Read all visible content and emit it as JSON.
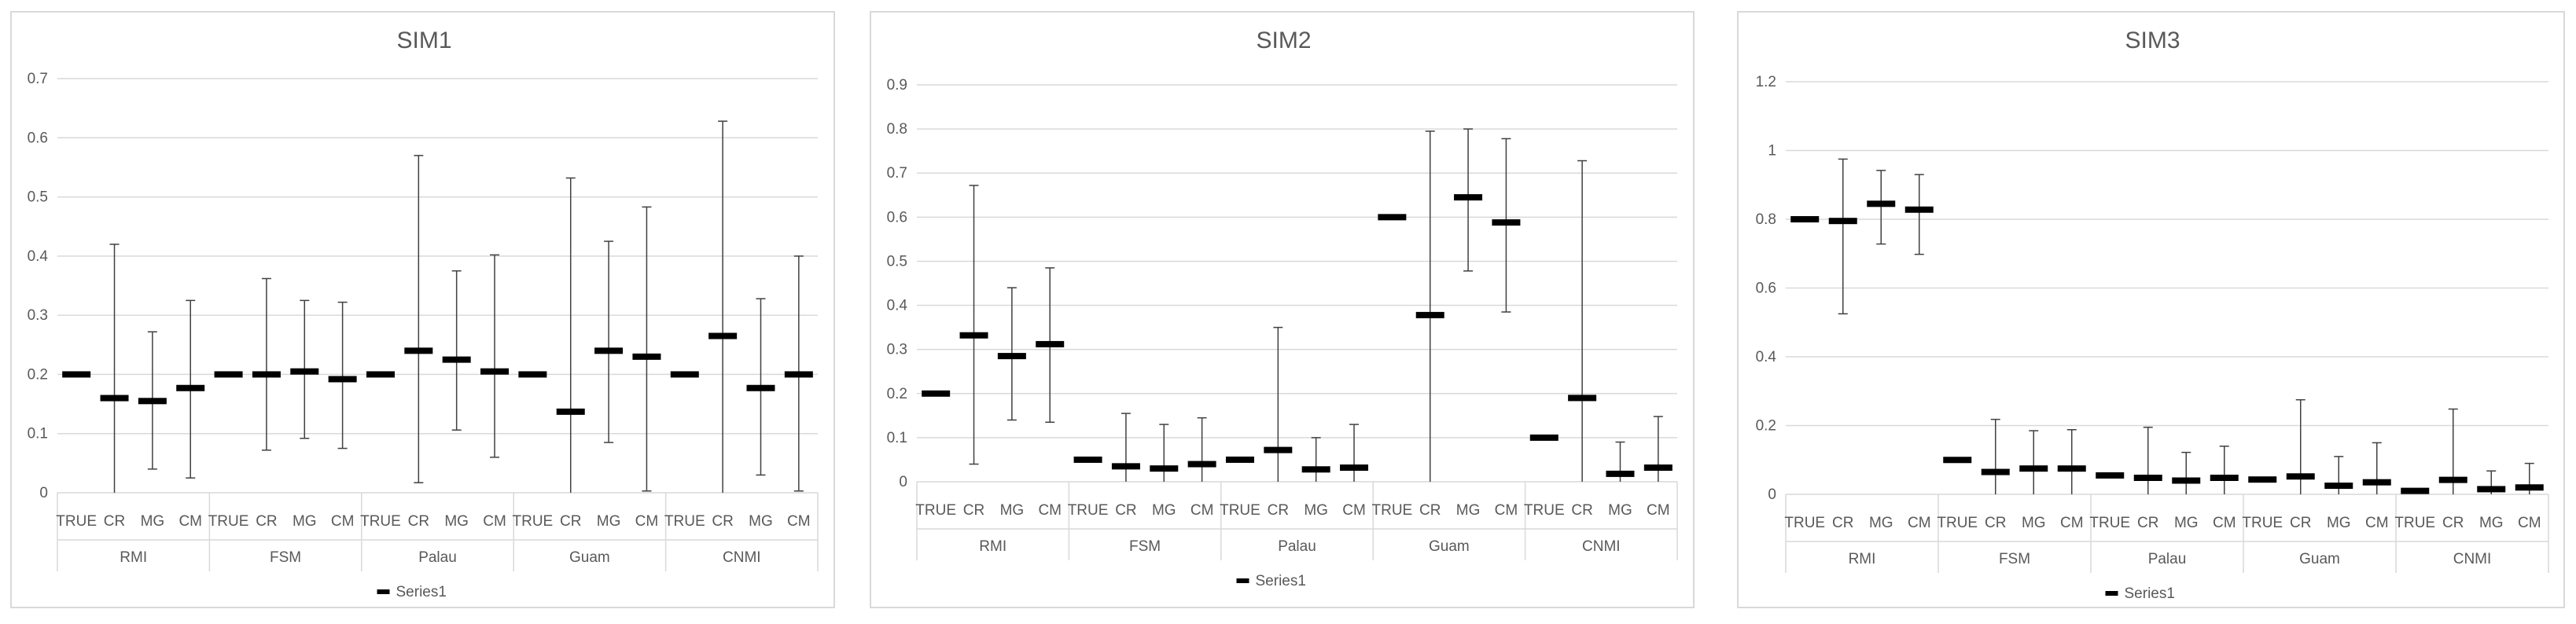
{
  "chart_data": [
    {
      "type": "box",
      "title": "SIM1",
      "ylim": [
        0,
        0.7
      ],
      "yticks": [
        "0",
        "0.1",
        "0.2",
        "0.3",
        "0.4",
        "0.5",
        "0.6",
        "0.7"
      ],
      "grid": true,
      "legend": "bottom",
      "legend_entries": [
        "Series1"
      ],
      "groups": [
        {
          "name": "RMI",
          "items": [
            {
              "label": "TRUE",
              "value": 0.2,
              "low": null,
              "high": null
            },
            {
              "label": "CR",
              "value": 0.16,
              "low": 0.0,
              "high": 0.42
            },
            {
              "label": "MG",
              "value": 0.155,
              "low": 0.04,
              "high": 0.272
            },
            {
              "label": "CM",
              "value": 0.177,
              "low": 0.025,
              "high": 0.325
            }
          ]
        },
        {
          "name": "FSM",
          "items": [
            {
              "label": "TRUE",
              "value": 0.2,
              "low": null,
              "high": null
            },
            {
              "label": "CR",
              "value": 0.2,
              "low": 0.072,
              "high": 0.362
            },
            {
              "label": "MG",
              "value": 0.205,
              "low": 0.092,
              "high": 0.325
            },
            {
              "label": "CM",
              "value": 0.192,
              "low": 0.075,
              "high": 0.322
            }
          ]
        },
        {
          "name": "Palau",
          "items": [
            {
              "label": "TRUE",
              "value": 0.2,
              "low": null,
              "high": null
            },
            {
              "label": "CR",
              "value": 0.24,
              "low": 0.017,
              "high": 0.57
            },
            {
              "label": "MG",
              "value": 0.225,
              "low": 0.106,
              "high": 0.375
            },
            {
              "label": "CM",
              "value": 0.205,
              "low": 0.06,
              "high": 0.402
            }
          ]
        },
        {
          "name": "Guam",
          "items": [
            {
              "label": "TRUE",
              "value": 0.2,
              "low": null,
              "high": null
            },
            {
              "label": "CR",
              "value": 0.137,
              "low": 0.0,
              "high": 0.532
            },
            {
              "label": "MG",
              "value": 0.24,
              "low": 0.085,
              "high": 0.425
            },
            {
              "label": "CM",
              "value": 0.23,
              "low": 0.003,
              "high": 0.483
            }
          ]
        },
        {
          "name": "CNMI",
          "items": [
            {
              "label": "TRUE",
              "value": 0.2,
              "low": null,
              "high": null
            },
            {
              "label": "CR",
              "value": 0.265,
              "low": 0.0,
              "high": 0.628
            },
            {
              "label": "MG",
              "value": 0.177,
              "low": 0.03,
              "high": 0.328
            },
            {
              "label": "CM",
              "value": 0.2,
              "low": 0.003,
              "high": 0.4
            }
          ]
        }
      ]
    },
    {
      "type": "box",
      "title": "SIM2",
      "ylim": [
        0,
        0.9
      ],
      "yticks": [
        "0",
        "0.1",
        "0.2",
        "0.3",
        "0.4",
        "0.5",
        "0.6",
        "0.7",
        "0.8",
        "0.9"
      ],
      "grid": true,
      "legend": "bottom",
      "legend_entries": [
        "Series1"
      ],
      "groups": [
        {
          "name": "RMI",
          "items": [
            {
              "label": "TRUE",
              "value": 0.2,
              "low": null,
              "high": null
            },
            {
              "label": "CR",
              "value": 0.332,
              "low": 0.04,
              "high": 0.672
            },
            {
              "label": "MG",
              "value": 0.285,
              "low": 0.14,
              "high": 0.44
            },
            {
              "label": "CM",
              "value": 0.312,
              "low": 0.135,
              "high": 0.485
            }
          ]
        },
        {
          "name": "FSM",
          "items": [
            {
              "label": "TRUE",
              "value": 0.05,
              "low": null,
              "high": null
            },
            {
              "label": "CR",
              "value": 0.035,
              "low": 0.0,
              "high": 0.155
            },
            {
              "label": "MG",
              "value": 0.03,
              "low": 0.0,
              "high": 0.13
            },
            {
              "label": "CM",
              "value": 0.04,
              "low": 0.0,
              "high": 0.145
            }
          ]
        },
        {
          "name": "Palau",
          "items": [
            {
              "label": "TRUE",
              "value": 0.05,
              "low": null,
              "high": null
            },
            {
              "label": "CR",
              "value": 0.072,
              "low": 0.0,
              "high": 0.35
            },
            {
              "label": "MG",
              "value": 0.028,
              "low": 0.0,
              "high": 0.1
            },
            {
              "label": "CM",
              "value": 0.032,
              "low": 0.0,
              "high": 0.13
            }
          ]
        },
        {
          "name": "Guam",
          "items": [
            {
              "label": "TRUE",
              "value": 0.6,
              "low": null,
              "high": null
            },
            {
              "label": "CR",
              "value": 0.378,
              "low": 0.0,
              "high": 0.795
            },
            {
              "label": "MG",
              "value": 0.645,
              "low": 0.478,
              "high": 0.8
            },
            {
              "label": "CM",
              "value": 0.588,
              "low": 0.385,
              "high": 0.778
            }
          ]
        },
        {
          "name": "CNMI",
          "items": [
            {
              "label": "TRUE",
              "value": 0.1,
              "low": null,
              "high": null
            },
            {
              "label": "CR",
              "value": 0.19,
              "low": 0.0,
              "high": 0.728
            },
            {
              "label": "MG",
              "value": 0.018,
              "low": 0.0,
              "high": 0.09
            },
            {
              "label": "CM",
              "value": 0.032,
              "low": 0.0,
              "high": 0.148
            }
          ]
        }
      ]
    },
    {
      "type": "box",
      "title": "SIM3",
      "ylim": [
        0,
        1.2
      ],
      "yticks": [
        "0",
        "0.2",
        "0.4",
        "0.6",
        "0.8",
        "1",
        "1.2"
      ],
      "grid": true,
      "legend": "bottom",
      "legend_entries": [
        "Series1"
      ],
      "groups": [
        {
          "name": "RMI",
          "items": [
            {
              "label": "TRUE",
              "value": 0.8,
              "low": null,
              "high": null
            },
            {
              "label": "CR",
              "value": 0.795,
              "low": 0.525,
              "high": 0.975
            },
            {
              "label": "MG",
              "value": 0.845,
              "low": 0.728,
              "high": 0.942
            },
            {
              "label": "CM",
              "value": 0.828,
              "low": 0.698,
              "high": 0.93
            }
          ]
        },
        {
          "name": "FSM",
          "items": [
            {
              "label": "TRUE",
              "value": 0.1,
              "low": null,
              "high": null
            },
            {
              "label": "CR",
              "value": 0.065,
              "low": 0.0,
              "high": 0.218
            },
            {
              "label": "MG",
              "value": 0.075,
              "low": 0.0,
              "high": 0.185
            },
            {
              "label": "CM",
              "value": 0.075,
              "low": 0.0,
              "high": 0.188
            }
          ]
        },
        {
          "name": "Palau",
          "items": [
            {
              "label": "TRUE",
              "value": 0.055,
              "low": null,
              "high": null
            },
            {
              "label": "CR",
              "value": 0.048,
              "low": 0.0,
              "high": 0.195
            },
            {
              "label": "MG",
              "value": 0.04,
              "low": 0.0,
              "high": 0.122
            },
            {
              "label": "CM",
              "value": 0.048,
              "low": 0.0,
              "high": 0.14
            }
          ]
        },
        {
          "name": "Guam",
          "items": [
            {
              "label": "TRUE",
              "value": 0.043,
              "low": null,
              "high": null
            },
            {
              "label": "CR",
              "value": 0.052,
              "low": 0.0,
              "high": 0.275
            },
            {
              "label": "MG",
              "value": 0.025,
              "low": 0.0,
              "high": 0.11
            },
            {
              "label": "CM",
              "value": 0.035,
              "low": 0.0,
              "high": 0.15
            }
          ]
        },
        {
          "name": "CNMI",
          "items": [
            {
              "label": "TRUE",
              "value": 0.01,
              "low": null,
              "high": null
            },
            {
              "label": "CR",
              "value": 0.042,
              "low": 0.0,
              "high": 0.248
            },
            {
              "label": "MG",
              "value": 0.015,
              "low": 0.0,
              "high": 0.068
            },
            {
              "label": "CM",
              "value": 0.02,
              "low": 0.0,
              "high": 0.09
            }
          ]
        }
      ]
    }
  ],
  "colors": {
    "mark": "#000000",
    "whisker": "#404040",
    "grid": "#d9d9d9",
    "text": "#595959",
    "border": "#d9d9d9"
  }
}
